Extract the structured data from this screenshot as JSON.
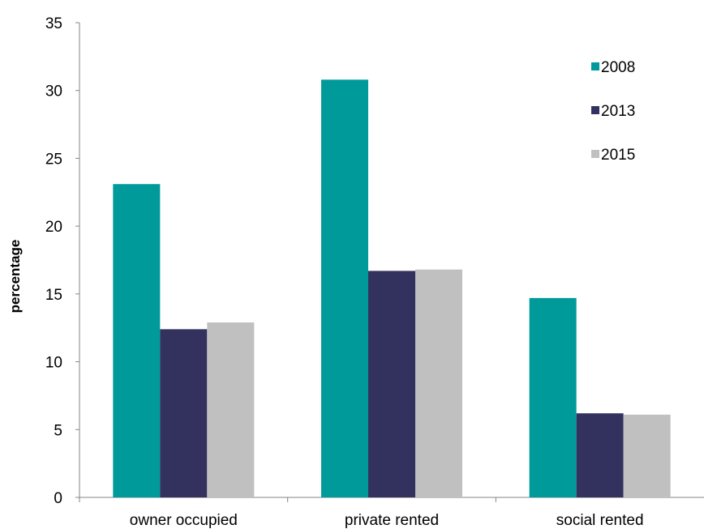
{
  "chart_data": {
    "type": "bar",
    "title": "",
    "xlabel": "",
    "ylabel": "percentage",
    "ylim": [
      0,
      35
    ],
    "yticks": [
      0,
      5,
      10,
      15,
      20,
      25,
      30,
      35
    ],
    "grid": false,
    "legend_position": "top-right",
    "categories": [
      "owner occupied",
      "private rented",
      "social rented"
    ],
    "series": [
      {
        "name": "2008",
        "color": "#009a9a",
        "values": [
          23.1,
          30.8,
          14.7
        ]
      },
      {
        "name": "2013",
        "color": "#33325f",
        "values": [
          12.4,
          16.7,
          6.2
        ]
      },
      {
        "name": "2015",
        "color": "#c0c0c0",
        "values": [
          12.9,
          16.8,
          6.1
        ]
      }
    ]
  }
}
